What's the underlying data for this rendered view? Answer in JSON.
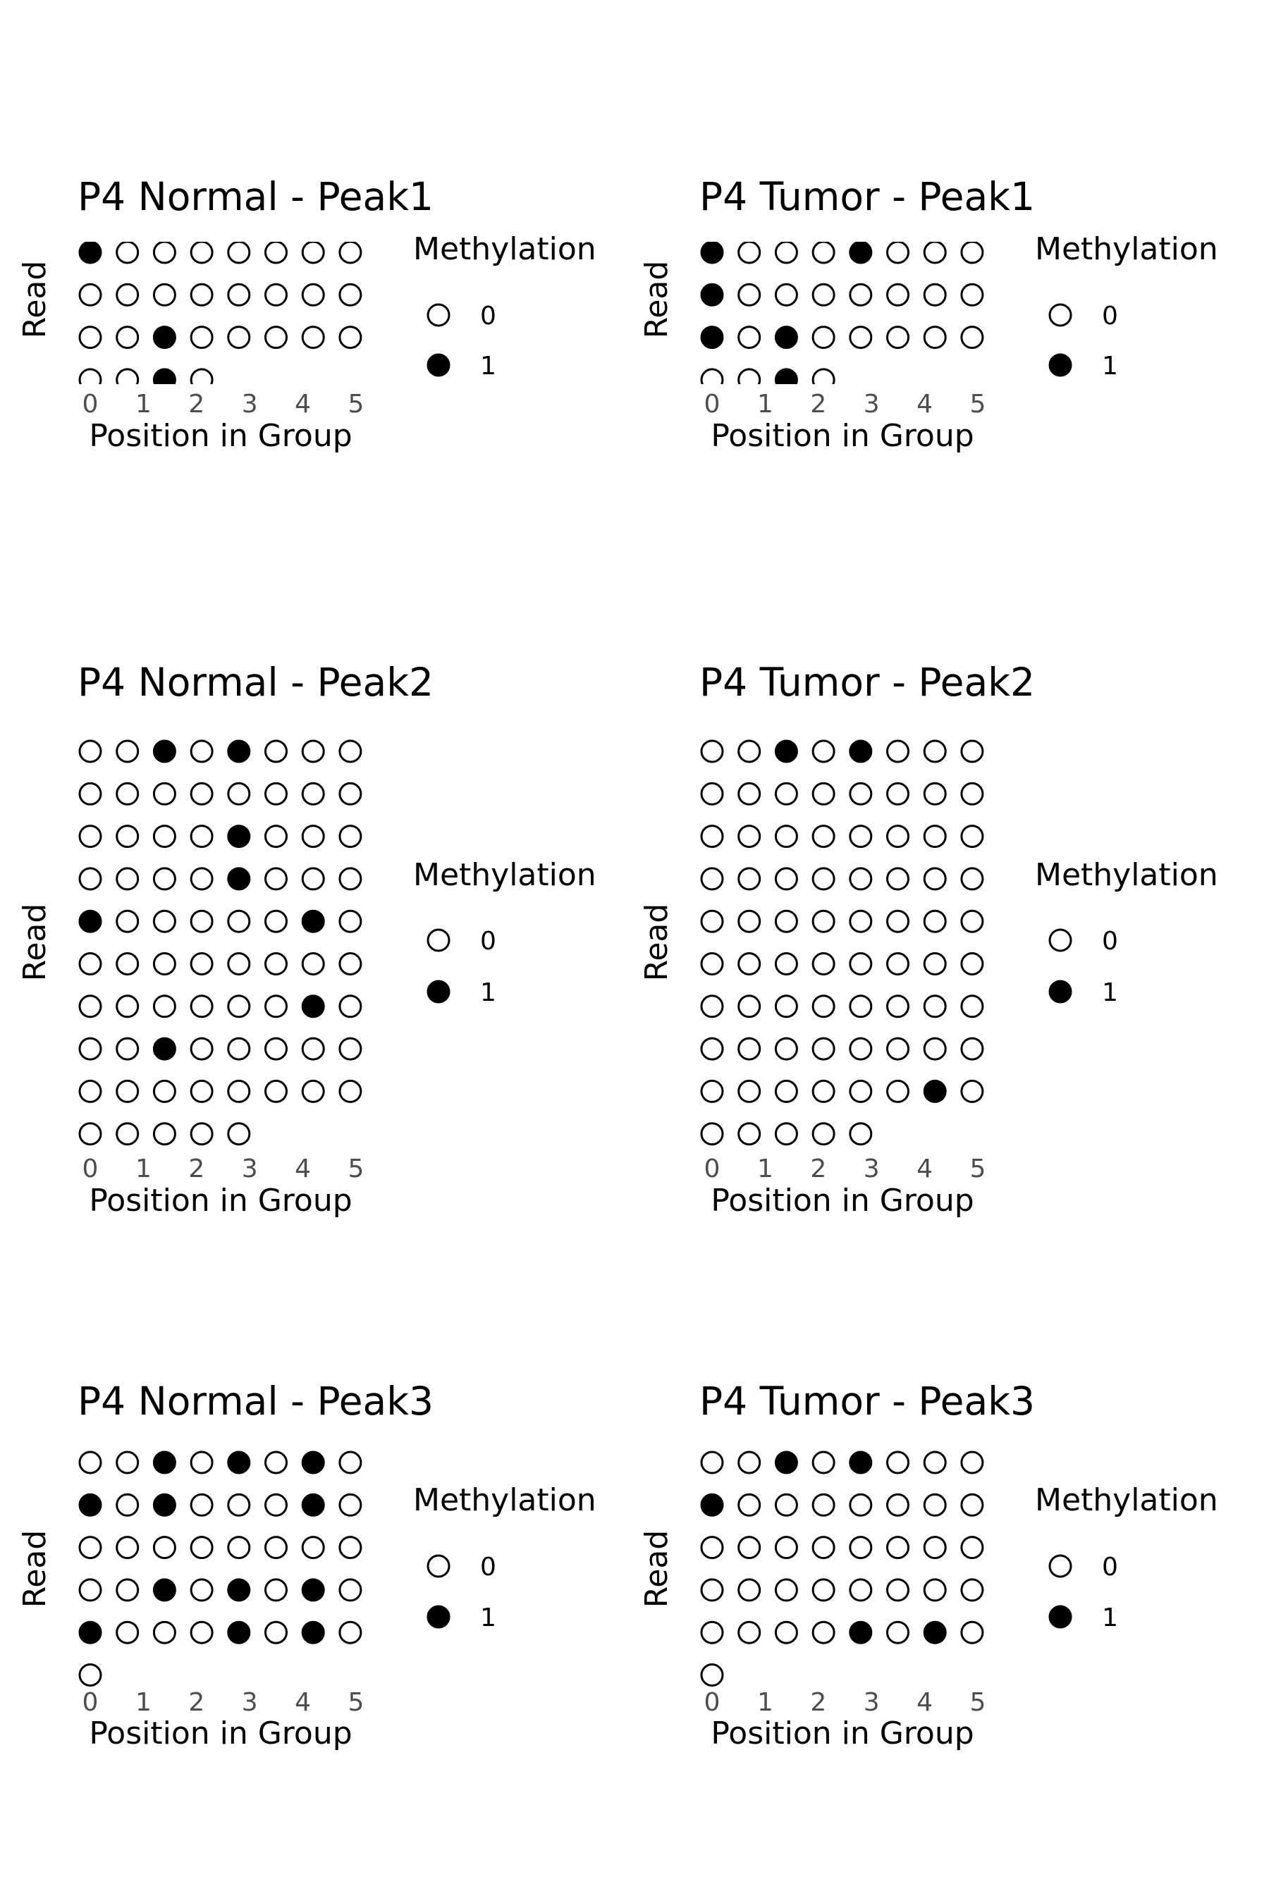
{
  "legend": {
    "title": "Methylation",
    "labels": [
      "0",
      "1"
    ]
  },
  "chart_data": [
    {
      "type": "scatter",
      "title": "P4 Normal - Peak1",
      "xlabel": "Position in Group",
      "ylabel": "Read",
      "xticks": [
        "0",
        "1",
        "2",
        "3",
        "4",
        "5"
      ],
      "clipped": true,
      "rows": [
        [
          1,
          0,
          0,
          0,
          0,
          0,
          0,
          0
        ],
        [
          0,
          0,
          0,
          0,
          0,
          0,
          0,
          0
        ],
        [
          0,
          0,
          1,
          0,
          0,
          0,
          0,
          0
        ],
        [
          0,
          0,
          1,
          0
        ]
      ]
    },
    {
      "type": "scatter",
      "title": "P4 Tumor - Peak1",
      "xlabel": "Position in Group",
      "ylabel": "Read",
      "xticks": [
        "0",
        "1",
        "2",
        "3",
        "4",
        "5"
      ],
      "clipped": true,
      "rows": [
        [
          1,
          0,
          0,
          0,
          1,
          0,
          0,
          0
        ],
        [
          1,
          0,
          0,
          0,
          0,
          0,
          0,
          0
        ],
        [
          1,
          0,
          1,
          0,
          0,
          0,
          0,
          0
        ],
        [
          0,
          0,
          1,
          0
        ]
      ]
    },
    {
      "type": "scatter",
      "title": "P4 Normal - Peak2",
      "xlabel": "Position in Group",
      "ylabel": "Read",
      "xticks": [
        "0",
        "1",
        "2",
        "3",
        "4",
        "5"
      ],
      "clipped": false,
      "rows": [
        [
          0,
          0,
          1,
          0,
          1,
          0,
          0,
          0
        ],
        [
          0,
          0,
          0,
          0,
          0,
          0,
          0,
          0
        ],
        [
          0,
          0,
          0,
          0,
          1,
          0,
          0,
          0
        ],
        [
          0,
          0,
          0,
          0,
          1,
          0,
          0,
          0
        ],
        [
          1,
          0,
          0,
          0,
          0,
          0,
          1,
          0
        ],
        [
          0,
          0,
          0,
          0,
          0,
          0,
          0,
          0
        ],
        [
          0,
          0,
          0,
          0,
          0,
          0,
          1,
          0
        ],
        [
          0,
          0,
          1,
          0,
          0,
          0,
          0,
          0
        ],
        [
          0,
          0,
          0,
          0,
          0,
          0,
          0,
          0
        ],
        [
          0,
          0,
          0,
          0,
          0
        ]
      ]
    },
    {
      "type": "scatter",
      "title": "P4 Tumor - Peak2",
      "xlabel": "Position in Group",
      "ylabel": "Read",
      "xticks": [
        "0",
        "1",
        "2",
        "3",
        "4",
        "5"
      ],
      "clipped": false,
      "rows": [
        [
          0,
          0,
          1,
          0,
          1,
          0,
          0,
          0
        ],
        [
          0,
          0,
          0,
          0,
          0,
          0,
          0,
          0
        ],
        [
          0,
          0,
          0,
          0,
          0,
          0,
          0,
          0
        ],
        [
          0,
          0,
          0,
          0,
          0,
          0,
          0,
          0
        ],
        [
          0,
          0,
          0,
          0,
          0,
          0,
          0,
          0
        ],
        [
          0,
          0,
          0,
          0,
          0,
          0,
          0,
          0
        ],
        [
          0,
          0,
          0,
          0,
          0,
          0,
          0,
          0
        ],
        [
          0,
          0,
          0,
          0,
          0,
          0,
          0,
          0
        ],
        [
          0,
          0,
          0,
          0,
          0,
          0,
          1,
          0
        ],
        [
          0,
          0,
          0,
          0,
          0
        ]
      ]
    },
    {
      "type": "scatter",
      "title": "P4 Normal - Peak3",
      "xlabel": "Position in Group",
      "ylabel": "Read",
      "xticks": [
        "0",
        "1",
        "2",
        "3",
        "4",
        "5"
      ],
      "clipped": false,
      "rows": [
        [
          0,
          0,
          1,
          0,
          1,
          0,
          1,
          0
        ],
        [
          1,
          0,
          1,
          0,
          0,
          0,
          1,
          0
        ],
        [
          0,
          0,
          0,
          0,
          0,
          0,
          0,
          0
        ],
        [
          0,
          0,
          1,
          0,
          1,
          0,
          1,
          0
        ],
        [
          1,
          0,
          0,
          0,
          1,
          0,
          1,
          0
        ],
        [
          0
        ]
      ]
    },
    {
      "type": "scatter",
      "title": "P4 Tumor - Peak3",
      "xlabel": "Position in Group",
      "ylabel": "Read",
      "xticks": [
        "0",
        "1",
        "2",
        "3",
        "4",
        "5"
      ],
      "clipped": false,
      "rows": [
        [
          0,
          0,
          1,
          0,
          1,
          0,
          0,
          0
        ],
        [
          1,
          0,
          0,
          0,
          0,
          0,
          0,
          0
        ],
        [
          0,
          0,
          0,
          0,
          0,
          0,
          0,
          0
        ],
        [
          0,
          0,
          0,
          0,
          0,
          0,
          0,
          0
        ],
        [
          0,
          0,
          0,
          0,
          1,
          0,
          1,
          0
        ],
        [
          0
        ]
      ]
    }
  ]
}
